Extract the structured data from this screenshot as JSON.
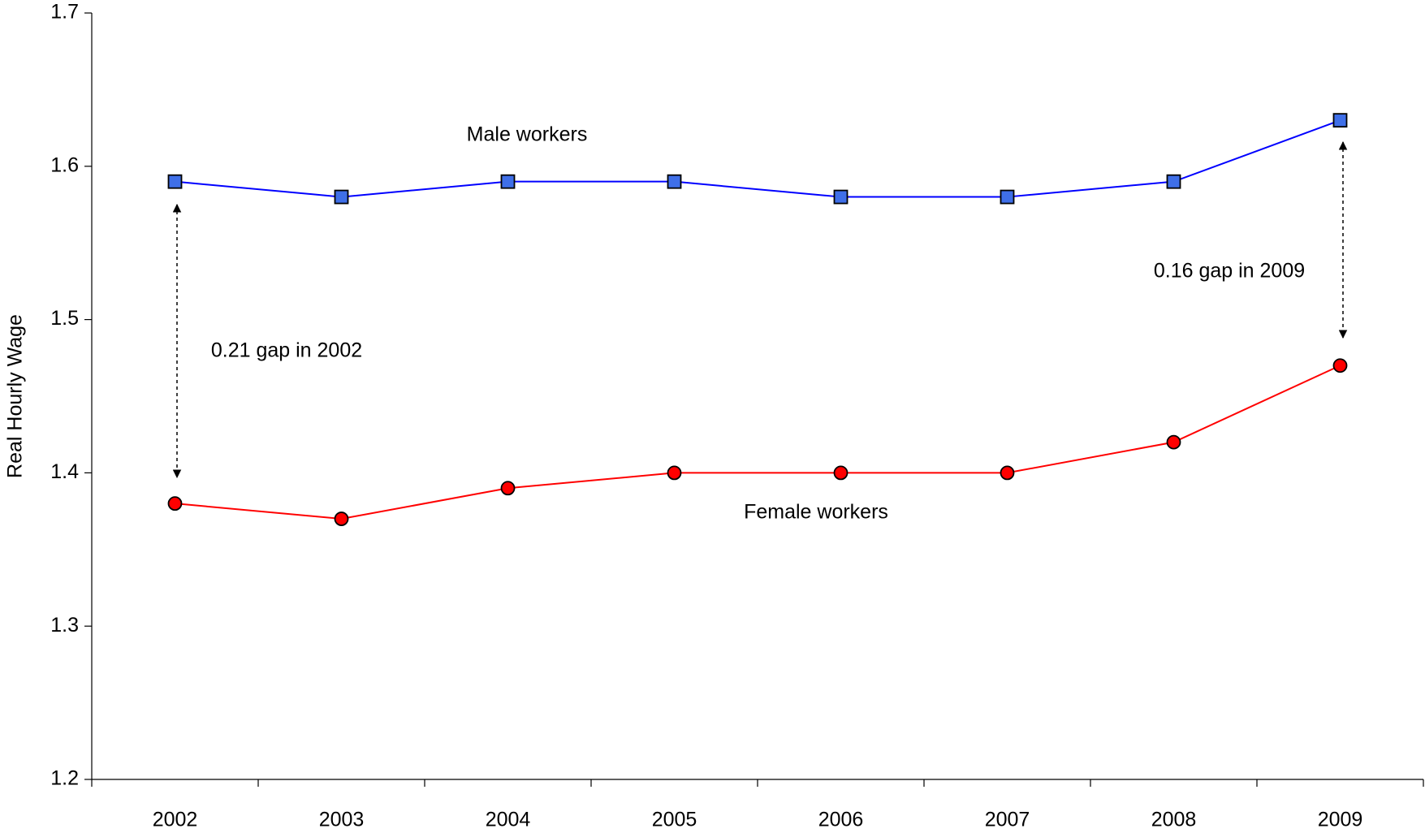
{
  "chart_data": {
    "type": "line",
    "y_label": "Real Hourly Wage",
    "categories": [
      "2002",
      "2003",
      "2004",
      "2005",
      "2006",
      "2007",
      "2008",
      "2009"
    ],
    "series": [
      {
        "name": "Male workers",
        "color": "#0000ff",
        "marker": "square",
        "marker_color": "#3f6fe8",
        "values": [
          1.59,
          1.58,
          1.59,
          1.59,
          1.58,
          1.58,
          1.59,
          1.63
        ]
      },
      {
        "name": "Female workers",
        "color": "#ff0000",
        "marker": "circle",
        "marker_color": "#ff0000",
        "values": [
          1.38,
          1.37,
          1.39,
          1.4,
          1.4,
          1.4,
          1.42,
          1.47
        ]
      }
    ],
    "annotations": [
      "0.21 gap in 2002",
      "0.16 gap in 2009"
    ],
    "ylim": [
      1.2,
      1.7
    ],
    "yticks": [
      1.2,
      1.3,
      1.4,
      1.5,
      1.6,
      1.7
    ],
    "grid": false
  }
}
